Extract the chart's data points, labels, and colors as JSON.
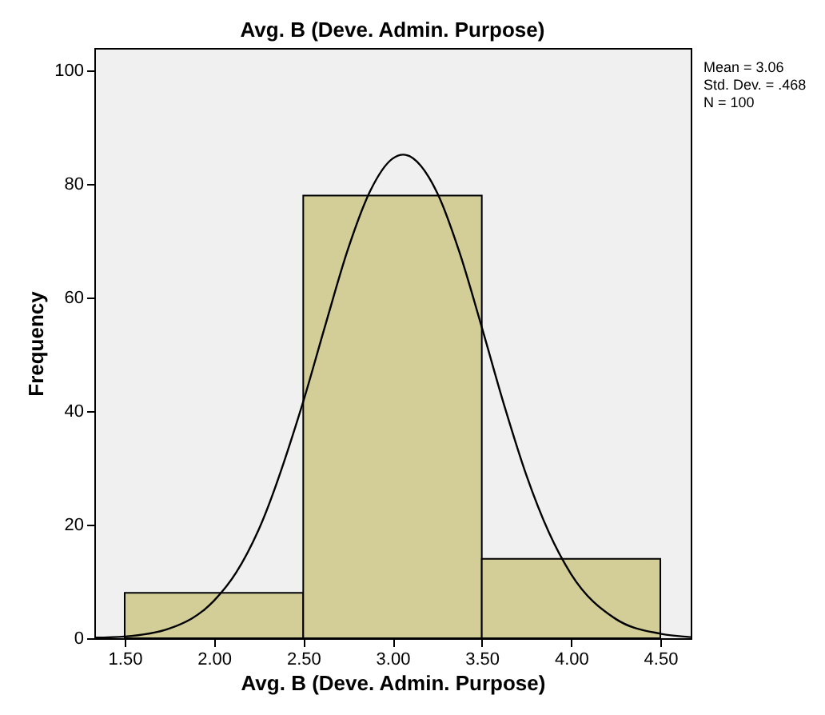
{
  "chart_data": {
    "type": "histogram",
    "title": "Avg. B (Deve. Admin. Purpose)",
    "xlabel": "Avg. B (Deve. Admin. Purpose)",
    "ylabel": "Frequency",
    "bins": [
      1.5,
      2.5,
      3.5,
      4.5
    ],
    "values": [
      8,
      78,
      14
    ],
    "color": "#d3ce97",
    "series": [
      {
        "type": "line",
        "color": "#000000",
        "x": [
          1.33,
          1.5,
          1.75,
          2.0,
          2.125,
          2.25,
          2.5,
          2.625,
          2.75,
          2.875,
          3.0,
          3.06,
          3.25,
          3.375,
          3.5,
          3.625,
          3.75,
          3.875,
          4.0,
          4.25,
          4.5,
          4.67
        ],
        "values": [
          0.1,
          0.3,
          1.7,
          6.6,
          11.6,
          19.1,
          41.7,
          55.3,
          68.5,
          78.8,
          84.5,
          85.2,
          78.5,
          68.0,
          54.8,
          41.1,
          28.7,
          18.7,
          11.3,
          3.4,
          0.8,
          0.2
        ]
      }
    ],
    "xlim": [
      1.33,
      4.67
    ],
    "ylim": [
      0,
      104
    ],
    "xticks": [
      {
        "value": 1.5,
        "label": "1.50"
      },
      {
        "value": 2.0,
        "label": "2.00"
      },
      {
        "value": 2.5,
        "label": "2.50"
      },
      {
        "value": 3.0,
        "label": "3.00"
      },
      {
        "value": 3.5,
        "label": "3.50"
      },
      {
        "value": 4.0,
        "label": "4.00"
      },
      {
        "value": 4.5,
        "label": "4.50"
      }
    ],
    "yticks": [
      0,
      20,
      40,
      60,
      80,
      100
    ],
    "grid": false,
    "annotations": [
      "Mean = 3.06",
      "Std. Dev. = .468",
      "N = 100"
    ]
  }
}
